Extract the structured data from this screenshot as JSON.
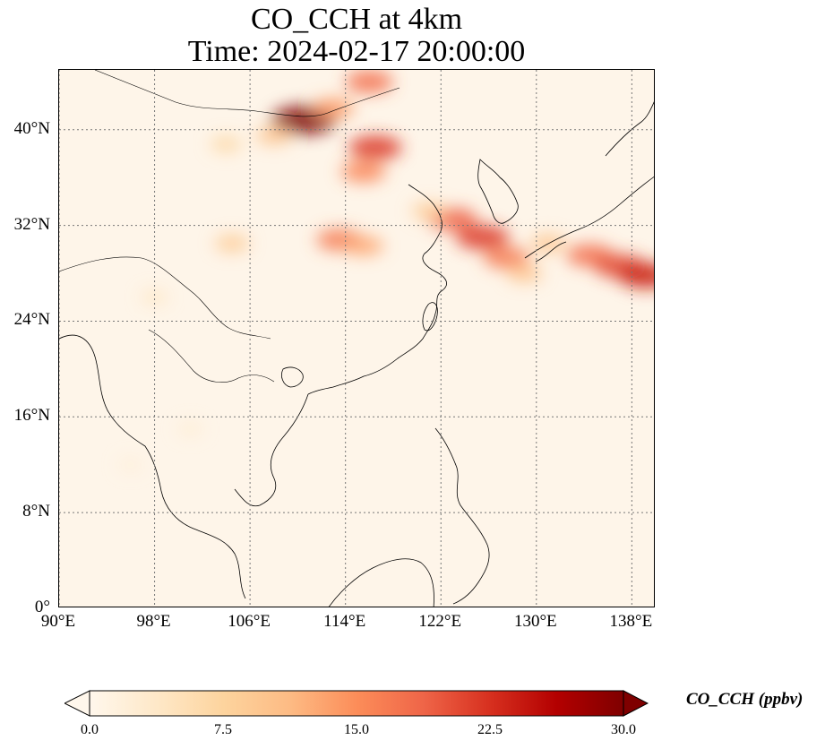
{
  "title_line1": "CO_CCH at 4km",
  "title_line2": "Time: 2024-02-17 20:00:00",
  "map": {
    "lon_range": [
      90,
      140
    ],
    "lat_range": [
      0,
      45
    ],
    "lat_ticks": [
      {
        "value": 0,
        "label": "0°"
      },
      {
        "value": 8,
        "label": "8°N"
      },
      {
        "value": 16,
        "label": "16°N"
      },
      {
        "value": 24,
        "label": "24°N"
      },
      {
        "value": 32,
        "label": "32°N"
      },
      {
        "value": 40,
        "label": "40°N"
      }
    ],
    "lon_ticks": [
      {
        "value": 90,
        "label": "90°E"
      },
      {
        "value": 98,
        "label": "98°E"
      },
      {
        "value": 106,
        "label": "106°E"
      },
      {
        "value": 114,
        "label": "114°E"
      },
      {
        "value": 122,
        "label": "122°E"
      },
      {
        "value": 130,
        "label": "130°E"
      },
      {
        "value": 138,
        "label": "138°E"
      }
    ],
    "gridlines": true,
    "background_color": "#fef5e9",
    "coast_color": "#000000",
    "plumes": [
      {
        "lon": 110.5,
        "lat": 40.8,
        "value": 30.0
      },
      {
        "lon": 113.0,
        "lat": 41.8,
        "value": 14.0
      },
      {
        "lon": 116.0,
        "lat": 44.0,
        "value": 18.0
      },
      {
        "lon": 108.0,
        "lat": 39.5,
        "value": 10.0
      },
      {
        "lon": 104.0,
        "lat": 38.8,
        "value": 7.0
      },
      {
        "lon": 116.5,
        "lat": 38.5,
        "value": 22.0
      },
      {
        "lon": 115.5,
        "lat": 36.5,
        "value": 16.0
      },
      {
        "lon": 113.5,
        "lat": 30.8,
        "value": 17.0
      },
      {
        "lon": 115.5,
        "lat": 30.3,
        "value": 13.0
      },
      {
        "lon": 104.5,
        "lat": 30.5,
        "value": 9.0
      },
      {
        "lon": 123.0,
        "lat": 32.5,
        "value": 19.0
      },
      {
        "lon": 125.5,
        "lat": 31.0,
        "value": 22.0
      },
      {
        "lon": 127.5,
        "lat": 29.3,
        "value": 17.0
      },
      {
        "lon": 129.0,
        "lat": 28.0,
        "value": 10.0
      },
      {
        "lon": 131.0,
        "lat": 30.5,
        "value": 10.0
      },
      {
        "lon": 134.5,
        "lat": 29.5,
        "value": 18.0
      },
      {
        "lon": 137.0,
        "lat": 28.6,
        "value": 21.0
      },
      {
        "lon": 139.2,
        "lat": 27.8,
        "value": 24.0
      },
      {
        "lon": 121.0,
        "lat": 33.2,
        "value": 9.0
      },
      {
        "lon": 98.0,
        "lat": 26.0,
        "value": 4.0
      },
      {
        "lon": 101.0,
        "lat": 15.0,
        "value": 2.5
      },
      {
        "lon": 96.0,
        "lat": 12.0,
        "value": 2.0
      }
    ]
  },
  "colorbar": {
    "label": "CO_CCH (ppbv)",
    "colormap": "OrRd",
    "min": 0.0,
    "max": 30.0,
    "ticks": [
      "0.0",
      "7.5",
      "15.0",
      "22.5",
      "30.0"
    ],
    "extend": "both",
    "colors": [
      "#fff7ec",
      "#fee8c8",
      "#fdd49e",
      "#fdbb84",
      "#fc8d59",
      "#ef6548",
      "#d7301f",
      "#b30000",
      "#7f0000"
    ]
  }
}
